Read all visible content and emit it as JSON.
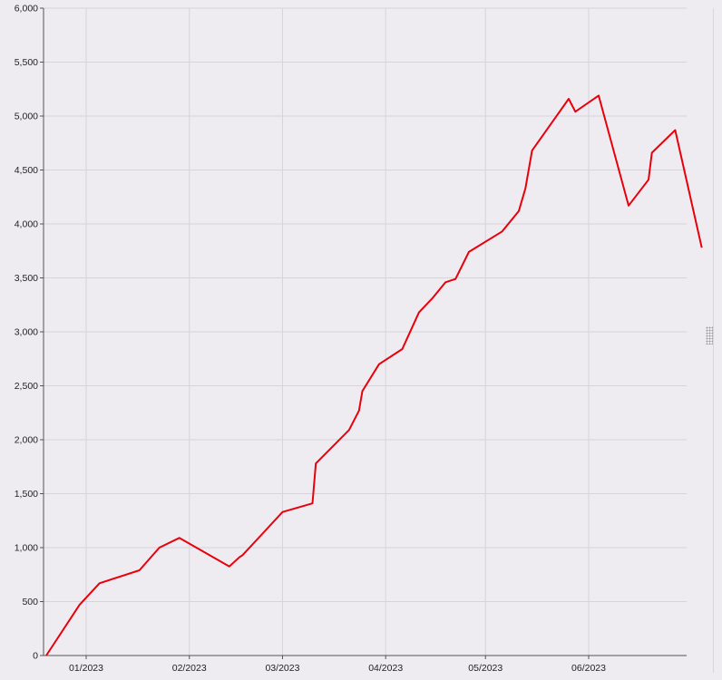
{
  "chart_data": {
    "type": "line",
    "title": "",
    "xlabel": "",
    "ylabel": "",
    "ylim": [
      0,
      6000
    ],
    "y_ticks": [
      "0",
      "500",
      "1,000",
      "1,500",
      "2,000",
      "2,500",
      "3,000",
      "3,500",
      "4,000",
      "4,500",
      "5,000",
      "5,500",
      "6,000"
    ],
    "x_ticks": [
      {
        "label": "01/2023",
        "date": "2023-01-01"
      },
      {
        "label": "02/2023",
        "date": "2023-02-01"
      },
      {
        "label": "03/2023",
        "date": "2023-03-01"
      },
      {
        "label": "04/2023",
        "date": "2023-04-01"
      },
      {
        "label": "05/2023",
        "date": "2023-05-01"
      },
      {
        "label": "06/2023",
        "date": "2023-06-01"
      }
    ],
    "xlim": [
      "2022-12-20",
      "2023-06-30"
    ],
    "grid": true,
    "legend": "none",
    "series": [
      {
        "color": "#e8000b",
        "points": [
          {
            "x": "2022-12-20",
            "y": 0
          },
          {
            "x": "2022-12-30",
            "y": 470
          },
          {
            "x": "2023-01-05",
            "y": 670
          },
          {
            "x": "2023-01-17",
            "y": 790
          },
          {
            "x": "2023-01-23",
            "y": 1000
          },
          {
            "x": "2023-01-29",
            "y": 1090
          },
          {
            "x": "2023-02-13",
            "y": 825
          },
          {
            "x": "2023-02-16",
            "y": 910
          },
          {
            "x": "2023-02-17",
            "y": 930
          },
          {
            "x": "2023-02-23",
            "y": 1130
          },
          {
            "x": "2023-03-01",
            "y": 1330
          },
          {
            "x": "2023-03-10",
            "y": 1410
          },
          {
            "x": "2023-03-11",
            "y": 1780
          },
          {
            "x": "2023-03-21",
            "y": 2090
          },
          {
            "x": "2023-03-24",
            "y": 2270
          },
          {
            "x": "2023-03-25",
            "y": 2450
          },
          {
            "x": "2023-03-30",
            "y": 2700
          },
          {
            "x": "2023-04-06",
            "y": 2840
          },
          {
            "x": "2023-04-11",
            "y": 3180
          },
          {
            "x": "2023-04-15",
            "y": 3310
          },
          {
            "x": "2023-04-19",
            "y": 3460
          },
          {
            "x": "2023-04-22",
            "y": 3490
          },
          {
            "x": "2023-04-26",
            "y": 3740
          },
          {
            "x": "2023-05-06",
            "y": 3930
          },
          {
            "x": "2023-05-11",
            "y": 4120
          },
          {
            "x": "2023-05-13",
            "y": 4330
          },
          {
            "x": "2023-05-15",
            "y": 4680
          },
          {
            "x": "2023-05-26",
            "y": 5160
          },
          {
            "x": "2023-05-28",
            "y": 5040
          },
          {
            "x": "2023-06-04",
            "y": 5190
          },
          {
            "x": "2023-06-13",
            "y": 4170
          },
          {
            "x": "2023-06-19",
            "y": 4410
          },
          {
            "x": "2023-06-20",
            "y": 4660
          },
          {
            "x": "2023-06-27",
            "y": 4870
          },
          {
            "x": "2023-07-05",
            "y": 3780
          }
        ]
      }
    ]
  }
}
